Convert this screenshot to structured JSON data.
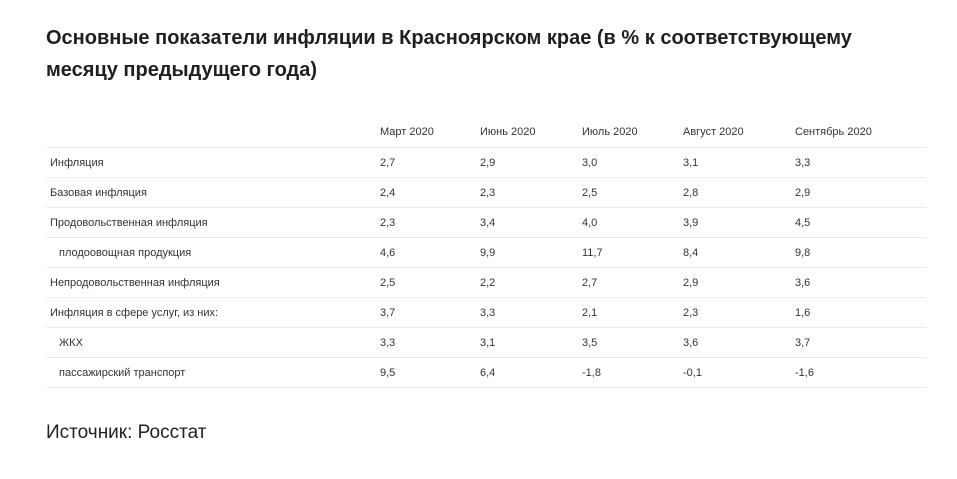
{
  "title": "Основные показатели инфляции в Красноярском крае (в % к соответствующему месяцу предыдущего года)",
  "table": {
    "columns": [
      "",
      "Март 2020",
      "Июнь 2020",
      "Июль 2020",
      "Август 2020",
      "Сентябрь 2020"
    ],
    "rows": [
      {
        "label": "Инфляция",
        "indent": false,
        "values": [
          "2,7",
          "2,9",
          "3,0",
          "3,1",
          "3,3"
        ]
      },
      {
        "label": "Базовая инфляция",
        "indent": false,
        "values": [
          "2,4",
          "2,3",
          "2,5",
          "2,8",
          "2,9"
        ]
      },
      {
        "label": "Продовольственная инфляция",
        "indent": false,
        "values": [
          "2,3",
          "3,4",
          "4,0",
          "3,9",
          "4,5"
        ]
      },
      {
        "label": "плодоовощная продукция",
        "indent": true,
        "values": [
          "4,6",
          "9,9",
          "11,7",
          "8,4",
          "9,8"
        ]
      },
      {
        "label": "Непродовольственная инфляция",
        "indent": false,
        "values": [
          "2,5",
          "2,2",
          "2,7",
          "2,9",
          "3,6"
        ]
      },
      {
        "label": "Инфляция в сфере услуг, из них:",
        "indent": false,
        "values": [
          "3,7",
          "3,3",
          "2,1",
          "2,3",
          "1,6"
        ]
      },
      {
        "label": "ЖКХ",
        "indent": true,
        "values": [
          "3,3",
          "3,1",
          "3,5",
          "3,6",
          "3,7"
        ]
      },
      {
        "label": "пассажирский транспорт",
        "indent": true,
        "values": [
          "9,5",
          "6,4",
          "-1,8",
          "-0,1",
          "-1,6"
        ]
      }
    ]
  },
  "source": "Источник: Росстат"
}
